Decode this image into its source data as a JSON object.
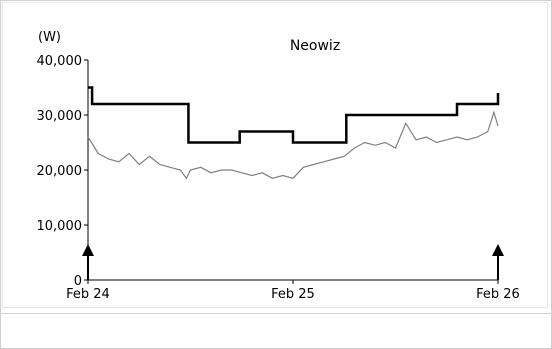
{
  "chart_data": {
    "type": "line",
    "title": "Neowiz",
    "ylabel": "(W)",
    "xlabel": "",
    "ylim": [
      0,
      40000
    ],
    "y_ticks": [
      "40,000",
      "30,000",
      "20,000",
      "10,000",
      "0"
    ],
    "x_ticks": [
      "Feb 24",
      "Feb 25",
      "Feb 26"
    ],
    "x_range": [
      0,
      2
    ],
    "grid": false,
    "legend": "none",
    "series": [
      {
        "name": "",
        "style": "step",
        "color": "#000000",
        "x": [
          0,
          0.02,
          0.49,
          0.74,
          1.0,
          1.26,
          1.8,
          2.0
        ],
        "values": [
          35000,
          32000,
          25000,
          27000,
          25000,
          30000,
          32000,
          34000
        ]
      },
      {
        "name": "",
        "style": "line",
        "color": "#808080",
        "x": [
          0,
          0.05,
          0.1,
          0.15,
          0.2,
          0.25,
          0.3,
          0.35,
          0.4,
          0.45,
          0.48,
          0.5,
          0.55,
          0.6,
          0.65,
          0.7,
          0.75,
          0.8,
          0.85,
          0.9,
          0.95,
          1.0,
          1.05,
          1.1,
          1.15,
          1.2,
          1.25,
          1.3,
          1.35,
          1.4,
          1.45,
          1.5,
          1.55,
          1.6,
          1.65,
          1.7,
          1.75,
          1.8,
          1.85,
          1.9,
          1.95,
          1.98,
          2.0
        ],
        "values": [
          26000,
          23000,
          22000,
          21500,
          23000,
          21000,
          22500,
          21000,
          20500,
          20000,
          18500,
          20000,
          20500,
          19500,
          20000,
          20000,
          19500,
          19000,
          19500,
          18500,
          19000,
          18500,
          20500,
          21000,
          21500,
          22000,
          22500,
          24000,
          25000,
          24500,
          25000,
          24000,
          28500,
          25500,
          26000,
          25000,
          25500,
          26000,
          25500,
          26000,
          27000,
          30500,
          28000
        ]
      }
    ],
    "annotations": [
      {
        "type": "arrow-up",
        "x": 0
      },
      {
        "type": "arrow-up",
        "x": 2
      }
    ]
  }
}
